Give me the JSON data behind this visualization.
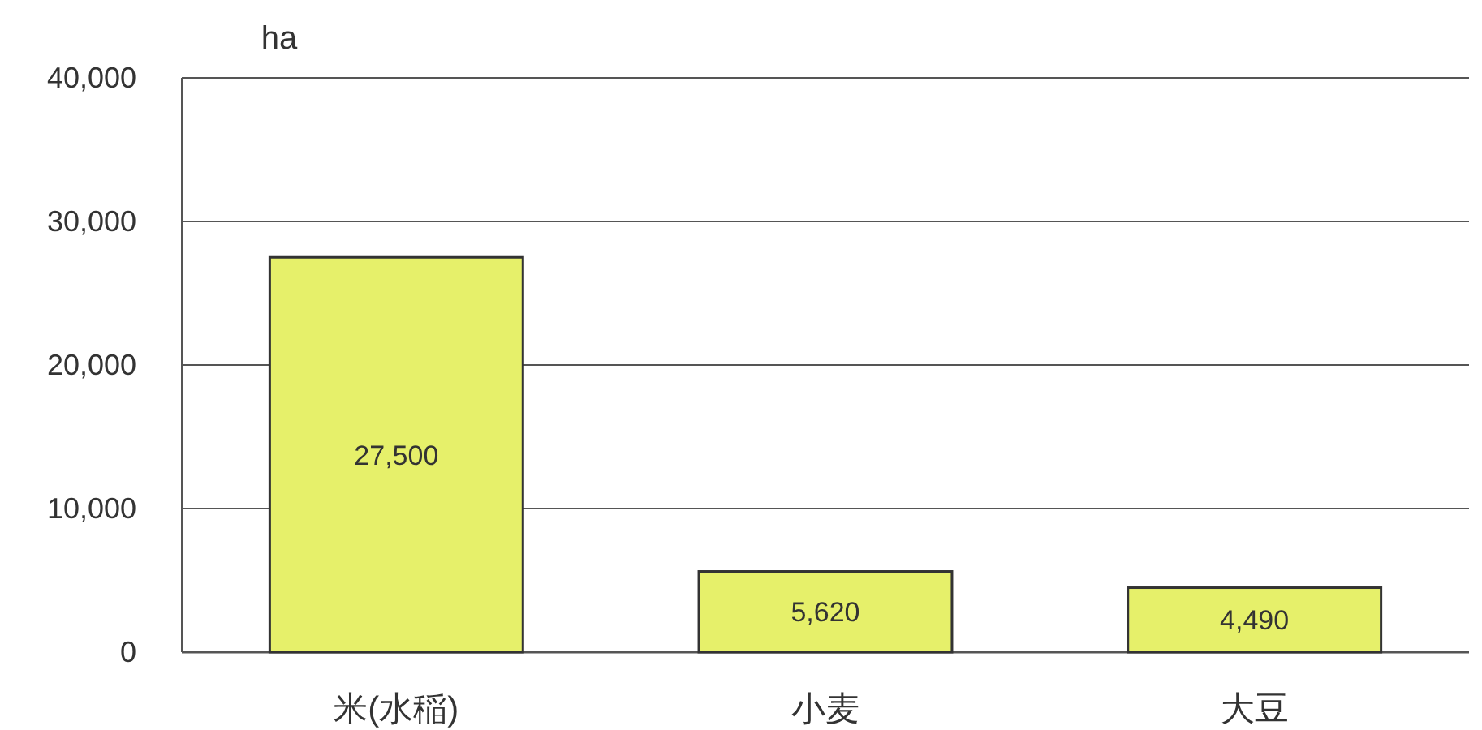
{
  "chart_data": {
    "type": "bar",
    "ylabel": "ha",
    "categories": [
      "米(水稲)",
      "小麦",
      "大豆"
    ],
    "values": [
      27500,
      5620,
      4490
    ],
    "color": "#e6f06a",
    "ylim": [
      0,
      40000
    ],
    "yticks": [
      {
        "value": 0,
        "label": "0"
      },
      {
        "value": 10000,
        "label": "10,000"
      },
      {
        "value": 20000,
        "label": "20,000"
      },
      {
        "value": 30000,
        "label": "30,000"
      },
      {
        "value": 40000,
        "label": "40,000"
      }
    ],
    "grid": "y",
    "value_labels": [
      "27,500",
      "5,620",
      "4,490"
    ]
  }
}
